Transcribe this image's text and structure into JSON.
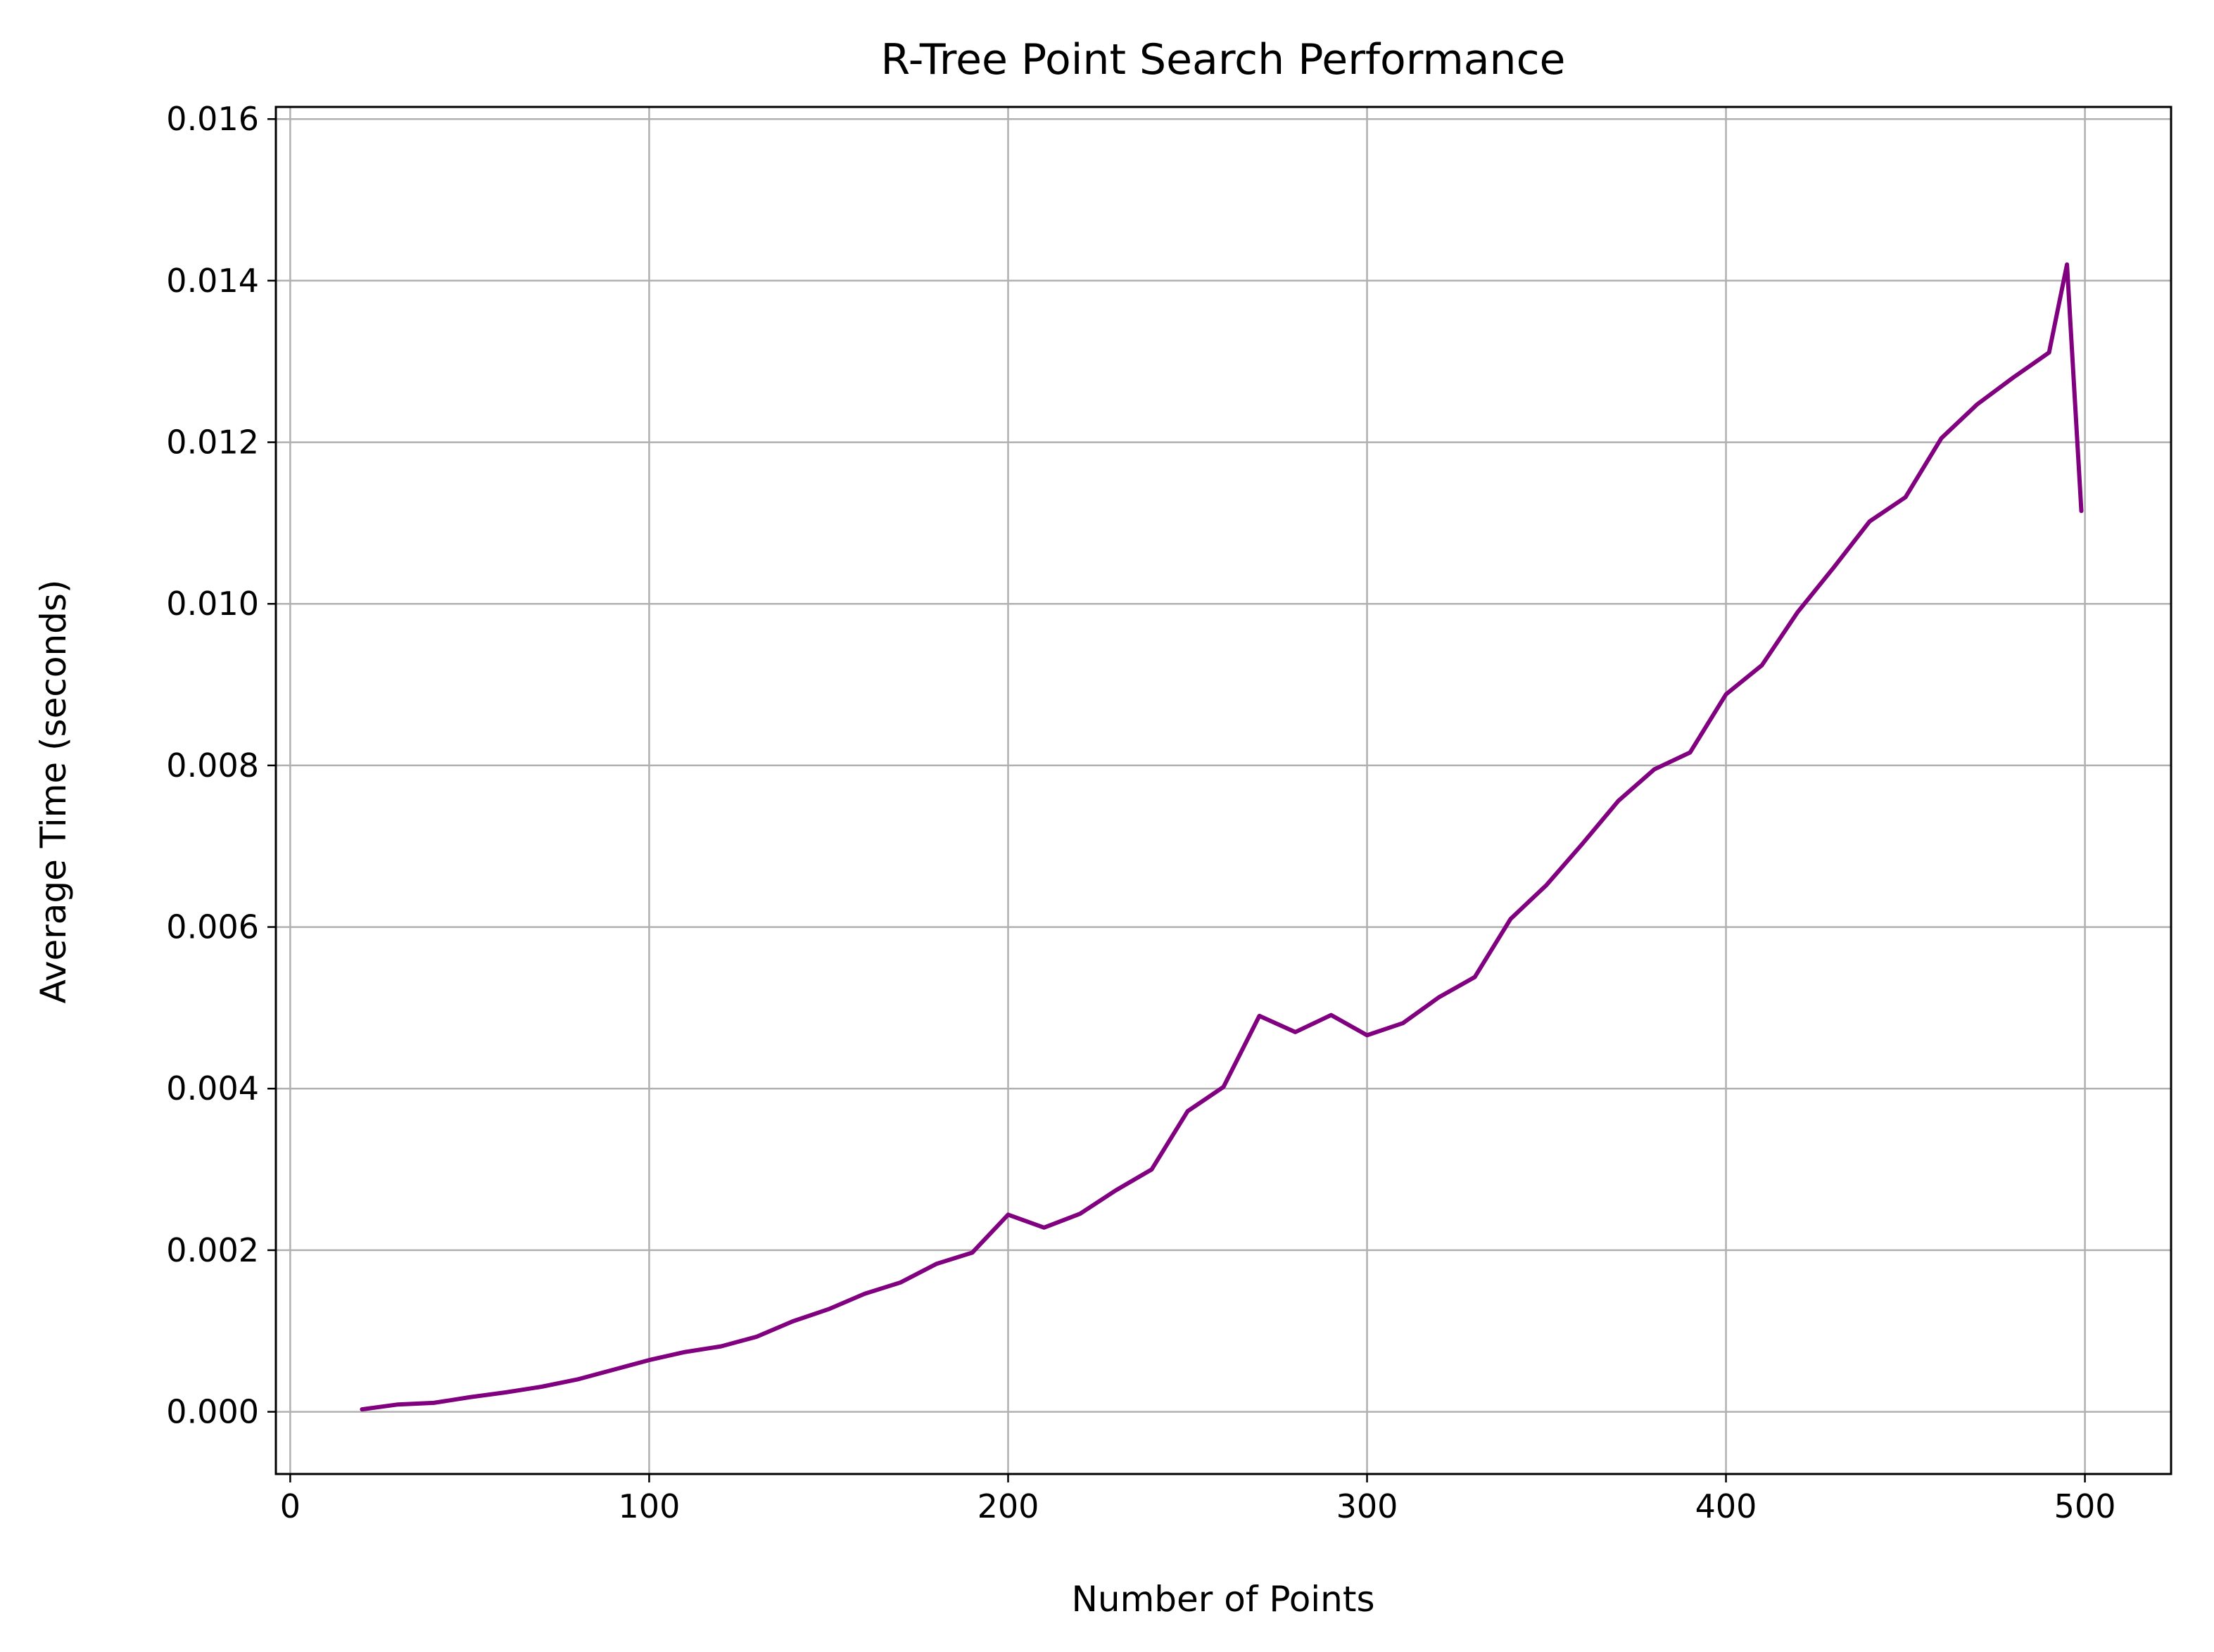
{
  "chart_data": {
    "type": "line",
    "title": "R-Tree Point Search Performance",
    "xlabel": "Number of Points",
    "ylabel": "Average Time (seconds)",
    "xlim": [
      -4,
      524
    ],
    "ylim": [
      -0.00077,
      0.01615
    ],
    "xticks": [
      0,
      100,
      200,
      300,
      400,
      500
    ],
    "xtick_labels": [
      "0",
      "100",
      "200",
      "300",
      "400",
      "500"
    ],
    "yticks": [
      0.0,
      0.002,
      0.004,
      0.006,
      0.008,
      0.01,
      0.012,
      0.014,
      0.016
    ],
    "ytick_labels": [
      "0.000",
      "0.002",
      "0.004",
      "0.006",
      "0.008",
      "0.010",
      "0.012",
      "0.014",
      "0.016"
    ],
    "grid": true,
    "series": [
      {
        "color": "#800080",
        "x": [
          20,
          30,
          40,
          50,
          60,
          70,
          80,
          90,
          100,
          110,
          120,
          130,
          140,
          150,
          160,
          170,
          180,
          190,
          200,
          210,
          220,
          230,
          240,
          250,
          260,
          270,
          280,
          290,
          300,
          310,
          320,
          330,
          340,
          350,
          360,
          370,
          380,
          390,
          400,
          410,
          420,
          430,
          440,
          450,
          460,
          470,
          480,
          490,
          495,
          499
        ],
        "y": [
          3e-05,
          9e-05,
          0.00011,
          0.00018,
          0.00024,
          0.00031,
          0.0004,
          0.00052,
          0.00064,
          0.00074,
          0.00081,
          0.00093,
          0.00112,
          0.00127,
          0.00146,
          0.0016,
          0.00183,
          0.00197,
          0.00244,
          0.00228,
          0.00245,
          0.00274,
          0.003,
          0.00372,
          0.00402,
          0.0049,
          0.0047,
          0.00491,
          0.00466,
          0.00481,
          0.00513,
          0.00538,
          0.0061,
          0.00652,
          0.00703,
          0.00756,
          0.00795,
          0.00816,
          0.00888,
          0.00924,
          0.0099,
          0.01045,
          0.01102,
          0.01132,
          0.01205,
          0.01247,
          0.0128,
          0.01311,
          0.0142,
          0.01115
        ]
      }
    ]
  }
}
